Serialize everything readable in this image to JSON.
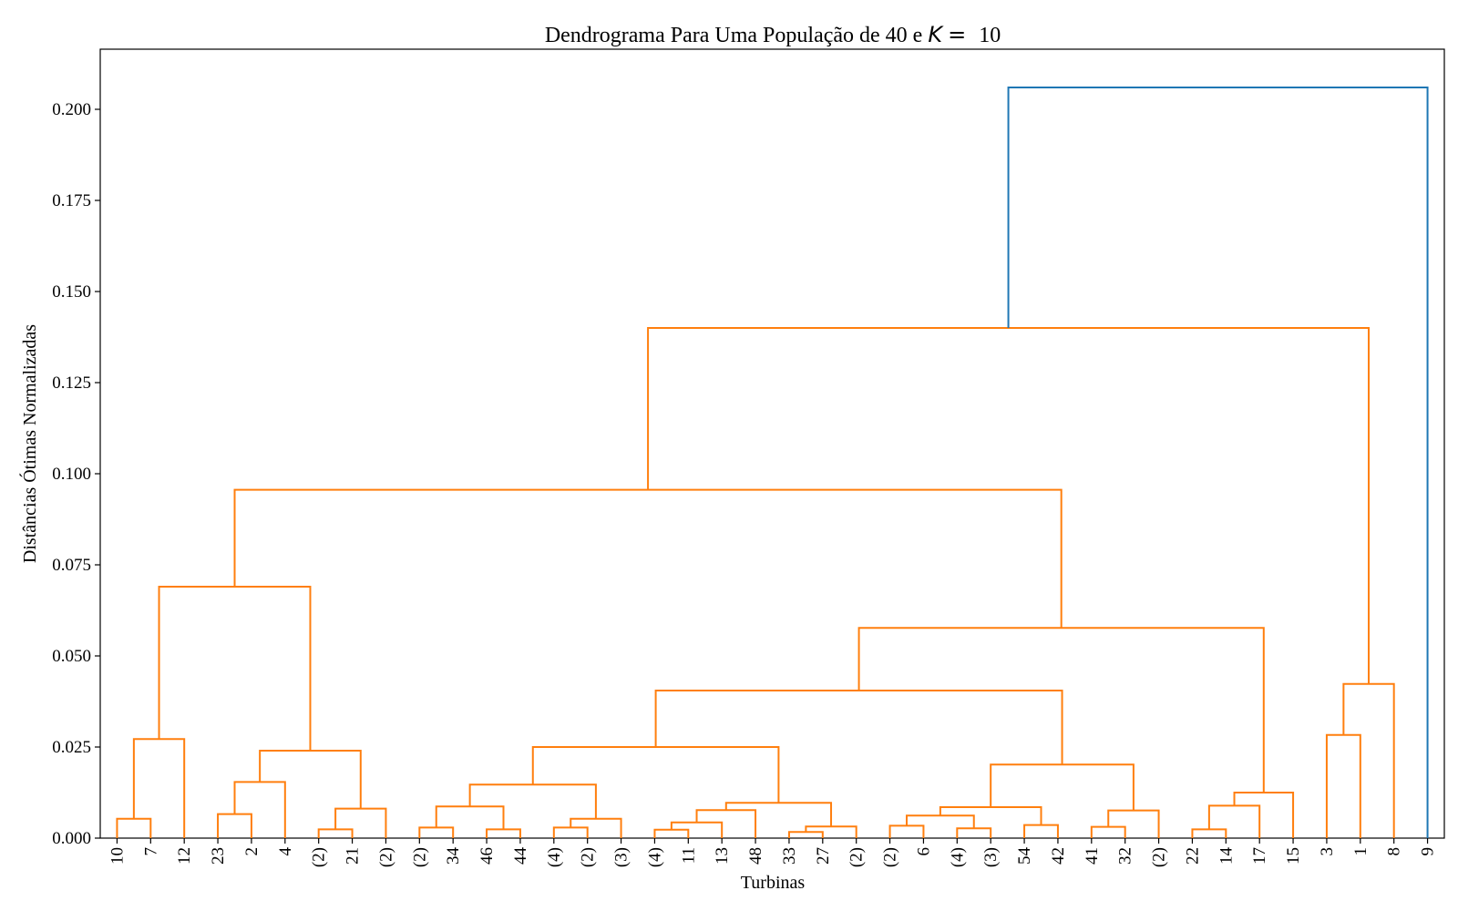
{
  "chart_data": {
    "type": "dendrogram",
    "title_text": "Dendrograma Para Uma População de 40 e ",
    "title_symbol": "K",
    "title_eq": "=",
    "title_value": "10",
    "xlabel": "Turbinas",
    "ylabel": "Distâncias Ótimas Normalizadas",
    "ylim": [
      0,
      0.2165
    ],
    "yticks": [
      "0.000",
      "0.025",
      "0.050",
      "0.075",
      "0.100",
      "0.125",
      "0.150",
      "0.175",
      "0.200"
    ],
    "leaves": [
      "10",
      "7",
      "12",
      "23",
      "2",
      "4",
      "(2)",
      "21",
      "(2)",
      "(2)",
      "34",
      "46",
      "44",
      "(4)",
      "(2)",
      "(3)",
      "(4)",
      "11",
      "13",
      "48",
      "33",
      "27",
      "(2)",
      "(2)",
      "6",
      "(4)",
      "(3)",
      "54",
      "42",
      "41",
      "32",
      "(2)",
      "22",
      "14",
      "17",
      "15",
      "3",
      "1",
      "8",
      "9"
    ],
    "colors": {
      "cluster": "#ff7f0e",
      "root": "#1f77b4",
      "axis": "#000000"
    },
    "links": [
      {
        "a": "L0",
        "b": "L1",
        "h": 0.0053
      },
      {
        "a": "N0",
        "b": "L2",
        "h": 0.0272
      },
      {
        "a": "L3",
        "b": "L4",
        "h": 0.0066
      },
      {
        "a": "N2",
        "b": "L5",
        "h": 0.0154
      },
      {
        "a": "L6",
        "b": "L7",
        "h": 0.0024
      },
      {
        "a": "N4",
        "b": "L8",
        "h": 0.0081
      },
      {
        "a": "N3",
        "b": "N5",
        "h": 0.024
      },
      {
        "a": "N1",
        "b": "N6",
        "h": 0.069
      },
      {
        "a": "L9",
        "b": "L10",
        "h": 0.0029
      },
      {
        "a": "L11",
        "b": "L12",
        "h": 0.0024
      },
      {
        "a": "N8",
        "b": "N9",
        "h": 0.0087
      },
      {
        "a": "L13",
        "b": "L14",
        "h": 0.0029
      },
      {
        "a": "N11",
        "b": "L15",
        "h": 0.0053
      },
      {
        "a": "N10",
        "b": "N12",
        "h": 0.0147
      },
      {
        "a": "L16",
        "b": "L17",
        "h": 0.0023
      },
      {
        "a": "N14",
        "b": "L18",
        "h": 0.0043
      },
      {
        "a": "N15",
        "b": "L19",
        "h": 0.0077
      },
      {
        "a": "L20",
        "b": "L21",
        "h": 0.0017
      },
      {
        "a": "N17",
        "b": "L22",
        "h": 0.0032
      },
      {
        "a": "N16",
        "b": "N18",
        "h": 0.0097
      },
      {
        "a": "N13",
        "b": "N19",
        "h": 0.025
      },
      {
        "a": "L23",
        "b": "L24",
        "h": 0.0034
      },
      {
        "a": "L25",
        "b": "L26",
        "h": 0.0027
      },
      {
        "a": "N21",
        "b": "N22",
        "h": 0.0062
      },
      {
        "a": "L27",
        "b": "L28",
        "h": 0.0036
      },
      {
        "a": "N23",
        "b": "N24",
        "h": 0.0085
      },
      {
        "a": "L29",
        "b": "L30",
        "h": 0.0031
      },
      {
        "a": "N26",
        "b": "L31",
        "h": 0.0076
      },
      {
        "a": "N25",
        "b": "N27",
        "h": 0.0202
      },
      {
        "a": "N20",
        "b": "N28",
        "h": 0.0405
      },
      {
        "a": "L32",
        "b": "L33",
        "h": 0.0024
      },
      {
        "a": "N30",
        "b": "L34",
        "h": 0.0089
      },
      {
        "a": "N31",
        "b": "L35",
        "h": 0.0125
      },
      {
        "a": "N29",
        "b": "N32",
        "h": 0.0577
      },
      {
        "a": "N7",
        "b": "N33",
        "h": 0.0956
      },
      {
        "a": "L36",
        "b": "L37",
        "h": 0.0283
      },
      {
        "a": "N35",
        "b": "L38",
        "h": 0.0423
      },
      {
        "a": "N34",
        "b": "N36",
        "h": 0.14
      },
      {
        "a": "N37",
        "b": "L39",
        "h": 0.206,
        "color": "root"
      }
    ]
  }
}
